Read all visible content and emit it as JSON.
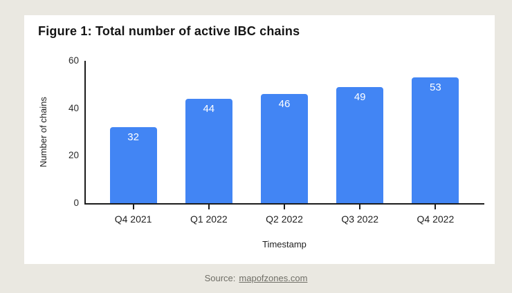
{
  "page": {
    "background_color": "#eae8e1",
    "panel_color": "#ffffff"
  },
  "chart_data": {
    "type": "bar",
    "title": "Figure 1: Total number of active IBC chains",
    "categories": [
      "Q4 2021",
      "Q1 2022",
      "Q2 2022",
      "Q3 2022",
      "Q4 2022"
    ],
    "values": [
      32,
      44,
      46,
      49,
      53
    ],
    "xlabel": "Timestamp",
    "ylabel": "Number of chains",
    "ylim": [
      0,
      60
    ],
    "yticks": [
      0,
      20,
      40,
      60
    ],
    "bar_color": "#4285f4",
    "value_label_color": "#ffffff",
    "axis_color": "#1c1c1c",
    "grid": false,
    "legend": "none"
  },
  "source": {
    "prefix": "Source:",
    "link_text": "mapofzones.com"
  }
}
